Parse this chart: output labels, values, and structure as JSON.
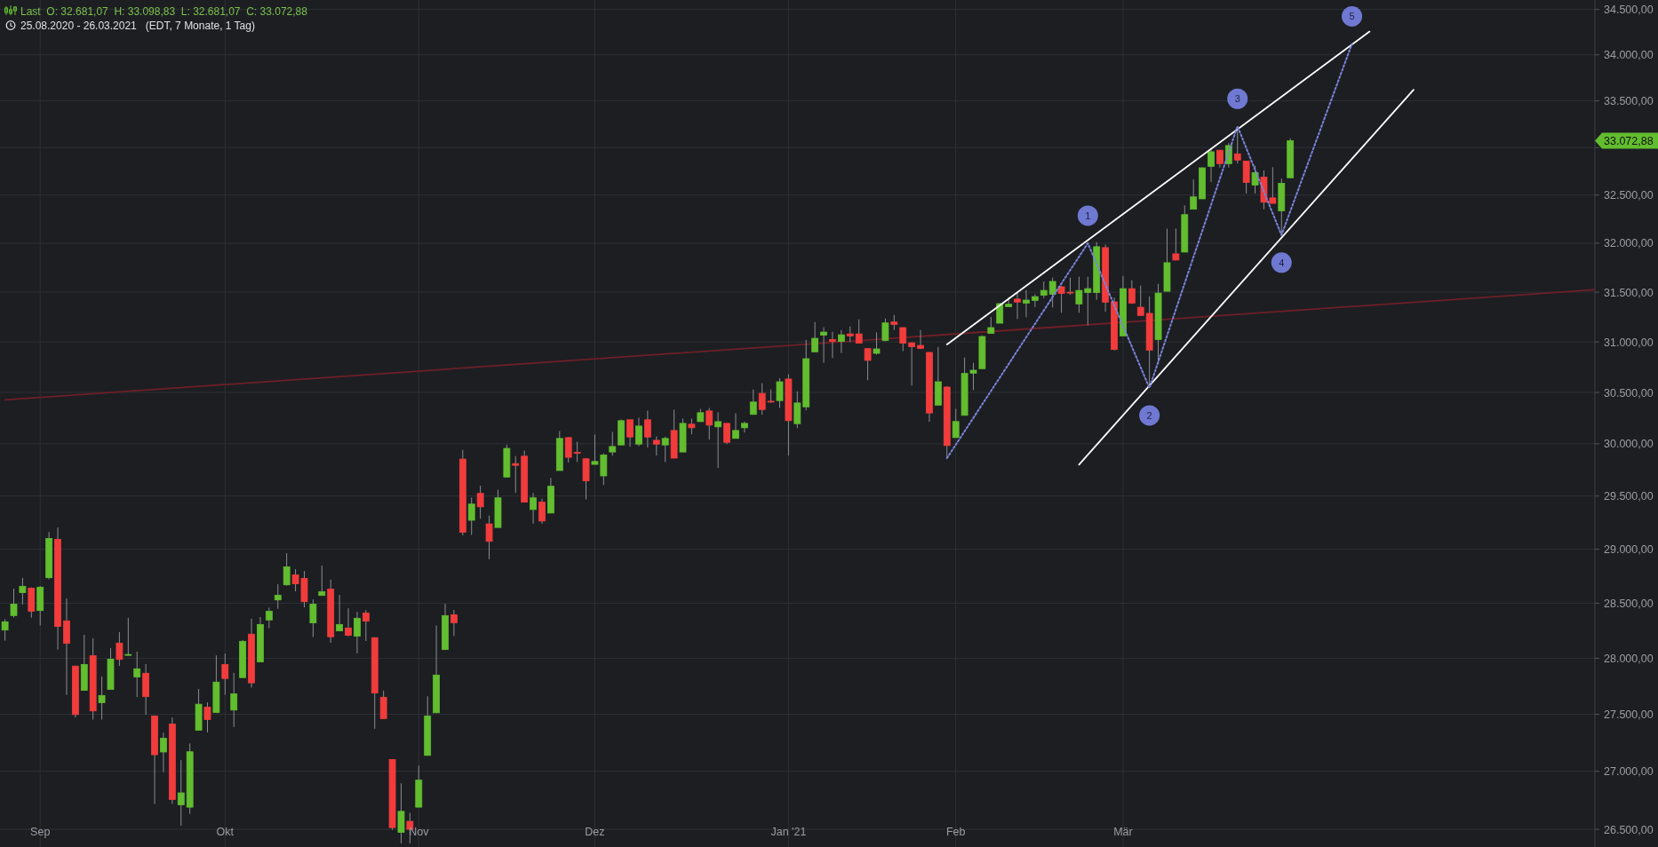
{
  "chart_data": {
    "type": "candlestick",
    "title": "Last  O: 32.681,07  H: 33.098,83  L: 32.681,07  C: 33.072,88",
    "subtitle": "25.08.2020 - 26.03.2021   (EDT, 7 Monate, 1 Tag)",
    "categories": [
      null,
      null,
      null,
      null,
      "Sep",
      null,
      null,
      null,
      null,
      null,
      null,
      null,
      null,
      null,
      null,
      null,
      null,
      null,
      null,
      null,
      null,
      null,
      null,
      null,
      null,
      "Okt",
      null,
      null,
      null,
      null,
      null,
      null,
      null,
      null,
      null,
      null,
      null,
      null,
      null,
      null,
      null,
      null,
      null,
      null,
      null,
      null,
      null,
      "Nov",
      null,
      null,
      null,
      null,
      null,
      null,
      null,
      null,
      null,
      null,
      null,
      null,
      null,
      null,
      null,
      null,
      null,
      null,
      null,
      "Dez",
      null,
      null,
      null,
      null,
      null,
      null,
      null,
      null,
      null,
      null,
      null,
      null,
      null,
      null,
      null,
      null,
      null,
      null,
      null,
      null,
      null,
      "Jan '21",
      null,
      null,
      null,
      null,
      null,
      null,
      null,
      null,
      null,
      null,
      null,
      null,
      null,
      null,
      null,
      null,
      null,
      null,
      "Feb",
      null,
      null,
      null,
      null,
      null,
      null,
      null,
      null,
      null,
      null,
      null,
      null,
      null,
      null,
      null,
      null,
      null,
      null,
      "Mär",
      null,
      null,
      null,
      null,
      null,
      null,
      null,
      null,
      null,
      null,
      null,
      null,
      null,
      null,
      null,
      null,
      null,
      null,
      null,
      null,
      null,
      null,
      null,
      null,
      null,
      null,
      null,
      null,
      null,
      null,
      null,
      null,
      null,
      null,
      null,
      null,
      null,
      null,
      null,
      null,
      null,
      null,
      null,
      null,
      null,
      null,
      null,
      null,
      null,
      null,
      null,
      null,
      null,
      null
    ],
    "ohlc": [
      [
        28255,
        28355,
        28159,
        28331
      ],
      [
        28387,
        28634,
        28368,
        28492
      ],
      [
        28598,
        28732,
        28489,
        28656
      ],
      [
        28639,
        28645,
        28368,
        28427
      ],
      [
        28433,
        28658,
        28296,
        28648
      ],
      [
        28735,
        29161,
        28721,
        29100
      ],
      [
        29092,
        29203,
        28078,
        28288
      ],
      [
        28339,
        28544,
        27672,
        28134
      ],
      [
        27929,
        27935,
        27471,
        27497
      ],
      [
        27712,
        28212,
        27712,
        27944
      ],
      [
        28024,
        28180,
        27453,
        27529
      ],
      [
        27603,
        27836,
        27453,
        27667
      ],
      [
        27720,
        28091,
        27720,
        27992
      ],
      [
        28137,
        28237,
        27931,
        27989
      ],
      [
        28030,
        28366,
        28025,
        28034
      ],
      [
        27831,
        28059,
        27653,
        27905
      ],
      [
        27865,
        27947,
        27495,
        27656
      ],
      [
        27484,
        27490,
        26718,
        27144
      ],
      [
        27168,
        27338,
        26992,
        27288
      ],
      [
        27414,
        27471,
        26718,
        26756
      ],
      [
        26710,
        27097,
        26531,
        26813
      ],
      [
        26690,
        27243,
        26633,
        27170
      ],
      [
        27359,
        27725,
        27359,
        27589
      ],
      [
        27563,
        27605,
        27340,
        27453
      ],
      [
        27516,
        28026,
        27516,
        27786
      ],
      [
        27944,
        28042,
        27672,
        27818
      ],
      [
        27537,
        27868,
        27387,
        27682
      ],
      [
        27826,
        28164,
        27826,
        28153
      ],
      [
        28218,
        28358,
        27737,
        27779
      ],
      [
        27968,
        28374,
        27968,
        28306
      ],
      [
        28347,
        28459,
        28272,
        28427
      ],
      [
        28530,
        28675,
        28449,
        28574
      ],
      [
        28669,
        28962,
        28661,
        28836
      ],
      [
        28762,
        28814,
        28609,
        28678
      ],
      [
        28729,
        28797,
        28462,
        28514
      ],
      [
        28320,
        28535,
        28191,
        28492
      ],
      [
        28571,
        28847,
        28571,
        28607
      ],
      [
        28631,
        28716,
        28140,
        28194
      ],
      [
        28247,
        28577,
        28247,
        28306
      ],
      [
        28274,
        28454,
        28199,
        28207
      ],
      [
        28199,
        28421,
        28043,
        28363
      ],
      [
        28411,
        28437,
        28156,
        28336
      ],
      [
        28186,
        28190,
        27372,
        27688
      ],
      [
        27651,
        27709,
        27461,
        27461
      ],
      [
        27102,
        27105,
        26495,
        26515
      ],
      [
        26474,
        26895,
        26380,
        26654
      ],
      [
        26569,
        26641,
        26380,
        26500
      ],
      [
        26690,
        27049,
        26690,
        26923
      ],
      [
        27138,
        27659,
        27138,
        27484
      ],
      [
        27513,
        28296,
        27513,
        27849
      ],
      [
        28078,
        28495,
        28078,
        28387
      ],
      [
        28395,
        28438,
        28201,
        28322
      ],
      [
        29853,
        29942,
        29130,
        29158
      ],
      [
        29271,
        29486,
        29133,
        29424
      ],
      [
        29525,
        29598,
        29285,
        29398
      ],
      [
        29237,
        29314,
        28907,
        29073
      ],
      [
        29203,
        29560,
        29203,
        29483
      ],
      [
        29681,
        29990,
        29681,
        29956
      ],
      [
        29810,
        29882,
        29531,
        29793
      ],
      [
        29881,
        29935,
        29442,
        29442
      ],
      [
        29372,
        29528,
        29239,
        29483
      ],
      [
        29442,
        29475,
        29239,
        29264
      ],
      [
        29339,
        29673,
        29339,
        29593
      ],
      [
        29743,
        30124,
        29743,
        30052
      ],
      [
        30060,
        30065,
        29819,
        29870
      ],
      [
        29918,
        30020,
        29825,
        29912
      ],
      [
        29856,
        29860,
        29469,
        29644
      ],
      [
        29802,
        30089,
        29802,
        29830
      ],
      [
        29692,
        29909,
        29605,
        29892
      ],
      [
        29921,
        30115,
        29887,
        29974
      ],
      [
        29989,
        30236,
        29989,
        30224
      ],
      [
        30233,
        30236,
        29972,
        30066
      ],
      [
        29997,
        30253,
        29977,
        30172
      ],
      [
        30233,
        30322,
        29963,
        30066
      ],
      [
        30034,
        30072,
        29887,
        29997
      ],
      [
        29989,
        30069,
        29825,
        30052
      ],
      [
        30129,
        30331,
        29862,
        29862
      ],
      [
        29921,
        30244,
        29921,
        30198
      ],
      [
        30190,
        30244,
        30092,
        30155
      ],
      [
        30215,
        30340,
        30215,
        30302
      ],
      [
        30319,
        30348,
        30040,
        30181
      ],
      [
        30164,
        30305,
        29768,
        30215
      ],
      [
        30198,
        30200,
        29997,
        30014
      ],
      [
        30052,
        30296,
        30052,
        30129
      ],
      [
        30155,
        30215,
        30109,
        30198
      ],
      [
        30285,
        30529,
        30285,
        30406
      ],
      [
        30491,
        30591,
        30282,
        30333
      ],
      [
        30414,
        30529,
        30400,
        30409
      ],
      [
        30420,
        30640,
        30350,
        30605
      ],
      [
        30632,
        30678,
        29887,
        30224
      ],
      [
        30195,
        30512,
        30152,
        30397
      ],
      [
        30359,
        31021,
        30325,
        30833
      ],
      [
        30901,
        31199,
        30901,
        31036
      ],
      [
        31067,
        31146,
        30792,
        31098
      ],
      [
        31024,
        31101,
        30839,
        31006
      ],
      [
        31006,
        31119,
        30889,
        31071
      ],
      [
        31080,
        31155,
        30997,
        31060
      ],
      [
        31080,
        31226,
        30988,
        30988
      ],
      [
        30933,
        30939,
        30620,
        30816
      ],
      [
        30886,
        31095,
        30874,
        30930
      ],
      [
        31015,
        31235,
        31006,
        31190
      ],
      [
        31199,
        31270,
        31119,
        31175
      ],
      [
        31143,
        31145,
        30909,
        30988
      ],
      [
        30991,
        30995,
        30567,
        30953
      ],
      [
        30965,
        31119,
        30927,
        30936
      ],
      [
        30895,
        30900,
        30213,
        30299
      ],
      [
        30376,
        30950,
        30376,
        30605
      ],
      [
        30553,
        30560,
        29862,
        29983
      ],
      [
        30060,
        30339,
        30060,
        30216
      ],
      [
        30276,
        30845,
        30276,
        30687
      ],
      [
        30690,
        30792,
        30523,
        30719
      ],
      [
        30734,
        31065,
        30734,
        31054
      ],
      [
        31085,
        31250,
        31085,
        31143
      ],
      [
        31187,
        31390,
        31187,
        31384
      ],
      [
        31354,
        31450,
        31354,
        31378
      ],
      [
        31430,
        31500,
        31229,
        31400
      ],
      [
        31390,
        31520,
        31247,
        31420
      ],
      [
        31417,
        31479,
        31351,
        31455
      ],
      [
        31470,
        31609,
        31440,
        31518
      ],
      [
        31479,
        31648,
        31345,
        31609
      ],
      [
        31555,
        31564,
        31292,
        31488
      ],
      [
        31500,
        31648,
        31473,
        31494
      ],
      [
        31381,
        31657,
        31292,
        31518
      ],
      [
        31497,
        31657,
        31167,
        31536
      ],
      [
        31497,
        32012,
        31423,
        31964
      ],
      [
        31955,
        31985,
        31301,
        31399
      ],
      [
        31402,
        31446,
        30915,
        30924
      ],
      [
        31060,
        31666,
        31060,
        31536
      ],
      [
        31536,
        31621,
        31381,
        31390
      ],
      [
        31348,
        31567,
        31265,
        31265
      ],
      [
        31286,
        31458,
        30544,
        30918
      ],
      [
        31024,
        31585,
        30778,
        31491
      ],
      [
        31509,
        32151,
        31509,
        31800
      ],
      [
        31891,
        32151,
        31827,
        31827
      ],
      [
        31909,
        32392,
        31909,
        32296
      ],
      [
        32352,
        32663,
        32352,
        32481
      ],
      [
        32460,
        32792,
        32460,
        32786
      ],
      [
        32802,
        32984,
        32638,
        32956
      ],
      [
        32972,
        32975,
        32789,
        32830
      ],
      [
        32830,
        33047,
        32789,
        33022
      ],
      [
        32934,
        33227,
        32833,
        32868
      ],
      [
        32858,
        32860,
        32516,
        32632
      ],
      [
        32604,
        32808,
        32516,
        32736
      ],
      [
        32689,
        32758,
        32351,
        32425
      ],
      [
        32471,
        32792,
        32413,
        32413
      ],
      [
        32336,
        32673,
        32084,
        32623
      ],
      [
        32681.07,
        33098.83,
        32681.07,
        33072.88
      ],
      null,
      null,
      null,
      null,
      null,
      null,
      null,
      null,
      null,
      null,
      null,
      null,
      null,
      null,
      null,
      null,
      null,
      null,
      null,
      null,
      null,
      null,
      null,
      null,
      null,
      null,
      null,
      null,
      null,
      null,
      null,
      null,
      null,
      null,
      null
    ],
    "colors": [
      "#62bd2f",
      "#62bd2f",
      "#62bd2f",
      "#f23c3c",
      "#62bd2f",
      "#62bd2f",
      "#f23c3c",
      "#f23c3c",
      "#f23c3c",
      "#62bd2f",
      "#f23c3c",
      "#62bd2f",
      "#62bd2f",
      "#f23c3c",
      "#62bd2f",
      "#62bd2f",
      "#f23c3c",
      "#f23c3c",
      "#62bd2f",
      "#f23c3c",
      "#62bd2f",
      "#62bd2f",
      "#62bd2f",
      "#f23c3c",
      "#62bd2f",
      "#f23c3c",
      "#62bd2f",
      "#62bd2f",
      "#f23c3c",
      "#62bd2f",
      "#62bd2f",
      "#62bd2f",
      "#62bd2f",
      "#f23c3c",
      "#f23c3c",
      "#62bd2f",
      "#62bd2f",
      "#f23c3c",
      "#62bd2f",
      "#f23c3c",
      "#62bd2f",
      "#f23c3c",
      "#f23c3c",
      "#f23c3c",
      "#f23c3c",
      "#62bd2f",
      "#f23c3c",
      "#62bd2f",
      "#62bd2f",
      "#62bd2f",
      "#62bd2f",
      "#f23c3c",
      "#f23c3c",
      "#62bd2f",
      "#f23c3c",
      "#f23c3c",
      "#62bd2f",
      "#62bd2f",
      "#f23c3c",
      "#f23c3c",
      "#62bd2f",
      "#f23c3c",
      "#62bd2f",
      "#62bd2f",
      "#f23c3c",
      "#f23c3c",
      "#f23c3c",
      "#62bd2f",
      "#62bd2f",
      "#62bd2f",
      "#62bd2f",
      "#f23c3c",
      "#62bd2f",
      "#f23c3c",
      "#f23c3c",
      "#62bd2f",
      "#f23c3c",
      "#62bd2f",
      "#f23c3c",
      "#62bd2f",
      "#f23c3c",
      "#62bd2f",
      "#f23c3c",
      "#62bd2f",
      "#62bd2f",
      "#62bd2f",
      "#f23c3c",
      "#f23c3c",
      "#62bd2f",
      "#f23c3c",
      "#62bd2f",
      "#62bd2f",
      "#62bd2f",
      "#62bd2f",
      "#f23c3c",
      "#62bd2f",
      "#f23c3c",
      "#f23c3c",
      "#f23c3c",
      "#62bd2f",
      "#62bd2f",
      "#f23c3c",
      "#f23c3c",
      "#f23c3c",
      "#f23c3c",
      "#f23c3c",
      "#62bd2f",
      "#f23c3c",
      "#62bd2f",
      "#62bd2f",
      "#62bd2f",
      "#62bd2f",
      "#62bd2f",
      "#62bd2f",
      "#62bd2f",
      "#f23c3c",
      "#62bd2f",
      "#62bd2f",
      "#62bd2f",
      "#62bd2f",
      "#f23c3c",
      "#f23c3c",
      "#62bd2f",
      "#62bd2f",
      "#62bd2f",
      "#f23c3c",
      "#f23c3c",
      "#62bd2f",
      "#f23c3c",
      "#f23c3c",
      "#f23c3c",
      "#62bd2f",
      "#62bd2f",
      "#f23c3c",
      "#62bd2f",
      "#62bd2f",
      "#62bd2f",
      "#62bd2f",
      "#f23c3c",
      "#62bd2f",
      "#f23c3c",
      "#f23c3c",
      "#62bd2f",
      "#f23c3c",
      "#f23c3c",
      "#62bd2f",
      "#62bd2f",
      null,
      null,
      null,
      null,
      null,
      null,
      null,
      null,
      null,
      null,
      null,
      null,
      null,
      null,
      null,
      null,
      null,
      null,
      null,
      null,
      null,
      null,
      null,
      null,
      null,
      null,
      null,
      null,
      null,
      null,
      null,
      null,
      null,
      null,
      null
    ],
    "series": [
      {
        "type": "line",
        "color": "#6e1f27",
        "values": [
          30428,
          null,
          null,
          null,
          null,
          null,
          null,
          null,
          null,
          null,
          null,
          null,
          null,
          null,
          null,
          null,
          null,
          null,
          null,
          null,
          null,
          null,
          null,
          null,
          null,
          null,
          null,
          null,
          null,
          null,
          null,
          null,
          null,
          null,
          null,
          null,
          null,
          null,
          null,
          null,
          null,
          null,
          null,
          null,
          null,
          null,
          null,
          null,
          null,
          null,
          null,
          null,
          null,
          null,
          null,
          null,
          null,
          null,
          null,
          null,
          null,
          null,
          null,
          null,
          null,
          null,
          null,
          null,
          null,
          null,
          null,
          null,
          null,
          null,
          null,
          null,
          null,
          null,
          null,
          null,
          null,
          null,
          null,
          null,
          null,
          null,
          null,
          null,
          null,
          null,
          null,
          null,
          null,
          null,
          null,
          null,
          null,
          null,
          null,
          null,
          null,
          null,
          null,
          null,
          null,
          null,
          null,
          null,
          null,
          null,
          null,
          null,
          null,
          null,
          null,
          null,
          null,
          null,
          null,
          null,
          null,
          null,
          null,
          null,
          null,
          null,
          null,
          null,
          null,
          null,
          null,
          null,
          null,
          null,
          null,
          null,
          null,
          null,
          null,
          null,
          null,
          null,
          null,
          null,
          null,
          null,
          null,
          null,
          null,
          null,
          null,
          null,
          null,
          null,
          null,
          null,
          null,
          null,
          null,
          null,
          null,
          null,
          null,
          null,
          null,
          null,
          null,
          null,
          null,
          null,
          null,
          null,
          null,
          null,
          null,
          null,
          null,
          null,
          null,
          null,
          null,
          31528
        ]
      },
      {
        "type": "line",
        "color": "#ffffff",
        "values": [
          null,
          null,
          null,
          null,
          null,
          null,
          null,
          null,
          null,
          null,
          null,
          null,
          null,
          null,
          null,
          null,
          null,
          null,
          null,
          null,
          null,
          null,
          null,
          null,
          null,
          null,
          null,
          null,
          null,
          null,
          null,
          null,
          null,
          null,
          null,
          null,
          null,
          null,
          null,
          null,
          null,
          null,
          null,
          null,
          null,
          null,
          null,
          null,
          null,
          null,
          null,
          null,
          null,
          null,
          null,
          null,
          null,
          null,
          null,
          null,
          null,
          null,
          null,
          null,
          null,
          null,
          null,
          null,
          null,
          null,
          null,
          null,
          null,
          null,
          null,
          null,
          null,
          null,
          null,
          null,
          null,
          null,
          null,
          null,
          null,
          null,
          null,
          null,
          null,
          null,
          null,
          null,
          null,
          null,
          null,
          null,
          null,
          null,
          null,
          null,
          null,
          null,
          null,
          null,
          null,
          null,
          null,
          30975,
          null,
          null,
          null,
          null,
          null,
          null,
          null,
          null,
          null,
          null,
          null,
          null,
          null,
          null,
          null,
          null,
          null,
          null,
          null,
          null,
          null,
          null,
          null,
          null,
          null,
          null,
          null,
          null,
          null,
          null,
          null,
          null,
          null,
          null,
          null,
          null,
          null,
          null,
          null,
          null,
          null,
          null,
          null,
          null,
          null,
          null,
          null,
          34255,
          null,
          null,
          null,
          null,
          null,
          null,
          null,
          null,
          null,
          null,
          null,
          null,
          null,
          null,
          null,
          null,
          null,
          null,
          null,
          null,
          null,
          null,
          null,
          null,
          null,
          null
        ]
      },
      {
        "type": "line",
        "color": "#ffffff",
        "values": [
          null,
          null,
          null,
          null,
          null,
          null,
          null,
          null,
          null,
          null,
          null,
          null,
          null,
          null,
          null,
          null,
          null,
          null,
          null,
          null,
          null,
          null,
          null,
          null,
          null,
          null,
          null,
          null,
          null,
          null,
          null,
          null,
          null,
          null,
          null,
          null,
          null,
          null,
          null,
          null,
          null,
          null,
          null,
          null,
          null,
          null,
          null,
          null,
          null,
          null,
          null,
          null,
          null,
          null,
          null,
          null,
          null,
          null,
          null,
          null,
          null,
          null,
          null,
          null,
          null,
          null,
          null,
          null,
          null,
          null,
          null,
          null,
          null,
          null,
          null,
          null,
          null,
          null,
          null,
          null,
          null,
          null,
          null,
          null,
          null,
          null,
          null,
          null,
          null,
          null,
          null,
          null,
          null,
          null,
          null,
          null,
          null,
          null,
          null,
          null,
          null,
          null,
          null,
          null,
          null,
          null,
          null,
          null,
          null,
          null,
          null,
          null,
          null,
          null,
          null,
          null,
          null,
          null,
          null,
          null,
          null,
          null,
          29800,
          null,
          null,
          null,
          null,
          null,
          null,
          null,
          null,
          null,
          null,
          null,
          null,
          null,
          null,
          null,
          null,
          null,
          null,
          null,
          null,
          null,
          null,
          null,
          null,
          null,
          null,
          null,
          null,
          null,
          null,
          null,
          null,
          null,
          null,
          null,
          null,
          null,
          33620,
          null,
          null,
          null,
          null,
          null,
          null,
          null,
          null,
          null,
          null,
          null,
          null,
          null,
          null,
          null,
          null,
          null,
          null,
          null,
          null,
          null
        ]
      },
      {
        "type": "line",
        "color": "#7b83d9",
        "line_style": "dotted",
        "values": [
          null,
          null,
          null,
          null,
          null,
          null,
          null,
          null,
          null,
          null,
          null,
          null,
          null,
          null,
          null,
          null,
          null,
          null,
          null,
          null,
          null,
          null,
          null,
          null,
          null,
          null,
          null,
          null,
          null,
          null,
          null,
          null,
          null,
          null,
          null,
          null,
          null,
          null,
          null,
          null,
          null,
          null,
          null,
          null,
          null,
          null,
          null,
          null,
          null,
          null,
          null,
          null,
          null,
          null,
          null,
          null,
          null,
          null,
          null,
          null,
          null,
          null,
          null,
          null,
          null,
          null,
          null,
          null,
          null,
          null,
          null,
          null,
          null,
          null,
          null,
          null,
          null,
          null,
          null,
          null,
          null,
          null,
          null,
          null,
          null,
          null,
          null,
          null,
          null,
          null,
          null,
          null,
          null,
          null,
          null,
          null,
          null,
          null,
          null,
          null,
          null,
          null,
          null,
          null,
          null,
          null,
          null,
          29862,
          null,
          null,
          null,
          null,
          null,
          null,
          null,
          null,
          null,
          null,
          null,
          null,
          null,
          null,
          null,
          32000,
          null,
          null,
          null,
          null,
          null,
          null,
          30544,
          null,
          null,
          null,
          null,
          null,
          null,
          null,
          null,
          null,
          33227,
          null,
          null,
          null,
          null,
          32084,
          null,
          null,
          null,
          null,
          null,
          null,
          null,
          34120,
          null,
          null,
          null,
          null,
          null,
          null,
          null,
          null,
          null,
          null,
          null,
          null,
          null,
          null,
          null,
          null,
          null,
          null,
          null,
          null,
          null,
          null,
          null,
          null,
          null,
          null,
          null,
          null
        ]
      }
    ],
    "annotations": [
      "1",
      "2",
      "3",
      "4",
      "5",
      "33.072,88"
    ],
    "log": true,
    "grid": true,
    "ylim": [
      26350,
      34605
    ],
    "yticks": [
      {
        "value": 26500,
        "label": "26.500,00"
      },
      {
        "value": 27000,
        "label": "27.000,00"
      },
      {
        "value": 27500,
        "label": "27.500,00"
      },
      {
        "value": 28000,
        "label": "28.000,00"
      },
      {
        "value": 28500,
        "label": "28.500,00"
      },
      {
        "value": 29000,
        "label": "29.000,00"
      },
      {
        "value": 29500,
        "label": "29.500,00"
      },
      {
        "value": 30000,
        "label": "30.000,00"
      },
      {
        "value": 30500,
        "label": "30.500,00"
      },
      {
        "value": 31000,
        "label": "31.000,00"
      },
      {
        "value": 31500,
        "label": "31.500,00"
      },
      {
        "value": 32000,
        "label": "32.000,00"
      },
      {
        "value": 32500,
        "label": "32.500,00"
      },
      {
        "value": 33000,
        "label": null
      },
      {
        "value": 33500,
        "label": "33.500,00"
      },
      {
        "value": 34000,
        "label": "34.000,00"
      },
      {
        "value": 34500,
        "label": "34.500,00"
      }
    ]
  }
}
